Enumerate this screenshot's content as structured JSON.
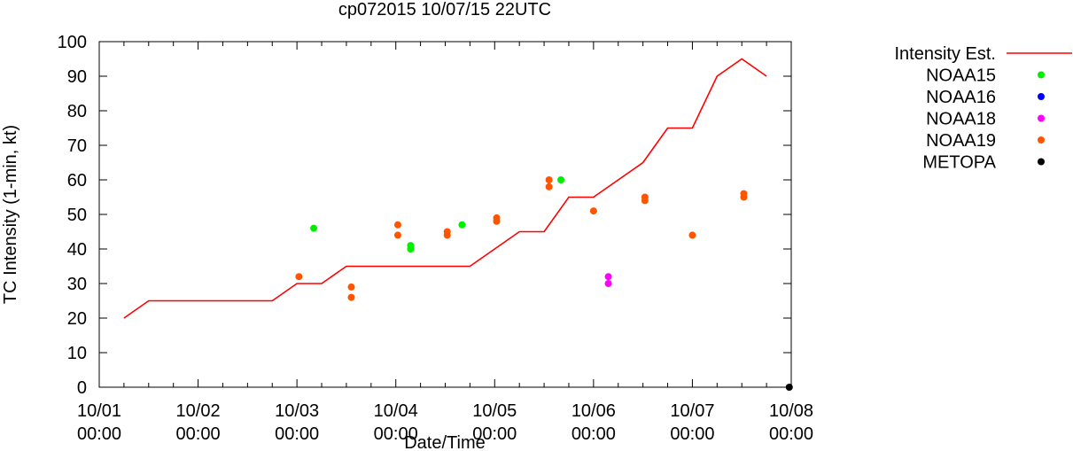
{
  "chart_data": {
    "type": "line",
    "title": "cp072015 10/07/15 22UTC",
    "xlabel": "Date/Time",
    "ylabel": "TC Intensity (1-min, kt)",
    "ylim": [
      0,
      100
    ],
    "yticks": [
      "0",
      "10",
      "20",
      "30",
      "40",
      "50",
      "60",
      "70",
      "80",
      "90",
      "100"
    ],
    "xlim_days": [
      0,
      7
    ],
    "xticks": [
      {
        "day": 0,
        "line1": "10/01",
        "line2": "00:00"
      },
      {
        "day": 1,
        "line1": "10/02",
        "line2": "00:00"
      },
      {
        "day": 2,
        "line1": "10/03",
        "line2": "00:00"
      },
      {
        "day": 3,
        "line1": "10/04",
        "line2": "00:00"
      },
      {
        "day": 4,
        "line1": "10/05",
        "line2": "00:00"
      },
      {
        "day": 5,
        "line1": "10/06",
        "line2": "00:00"
      },
      {
        "day": 6,
        "line1": "10/07",
        "line2": "00:00"
      },
      {
        "day": 7,
        "line1": "10/08",
        "line2": "00:00"
      }
    ],
    "grid": false,
    "legend_position": "outside-right",
    "series": [
      {
        "name": "Intensity Est.",
        "kind": "line",
        "color": "#ff0000",
        "points": [
          [
            0.25,
            20
          ],
          [
            0.5,
            25
          ],
          [
            1.75,
            25
          ],
          [
            2.0,
            30
          ],
          [
            2.25,
            30
          ],
          [
            2.5,
            35
          ],
          [
            3.75,
            35
          ],
          [
            4.0,
            40
          ],
          [
            4.25,
            45
          ],
          [
            4.5,
            45
          ],
          [
            4.75,
            55
          ],
          [
            5.0,
            55
          ],
          [
            5.5,
            65
          ],
          [
            5.75,
            75
          ],
          [
            6.0,
            75
          ],
          [
            6.25,
            90
          ],
          [
            6.5,
            95
          ],
          [
            6.75,
            90
          ]
        ]
      },
      {
        "name": "NOAA15",
        "kind": "scatter",
        "color": "#00ee00",
        "points": [
          [
            2.17,
            46
          ],
          [
            3.15,
            41
          ],
          [
            3.15,
            40
          ],
          [
            3.67,
            47
          ],
          [
            4.67,
            60
          ]
        ]
      },
      {
        "name": "NOAA16",
        "kind": "scatter",
        "color": "#0000ff",
        "points": []
      },
      {
        "name": "NOAA18",
        "kind": "scatter",
        "color": "#ff00ff",
        "points": [
          [
            5.15,
            32
          ],
          [
            5.15,
            30
          ]
        ]
      },
      {
        "name": "NOAA19",
        "kind": "scatter",
        "color": "#ff5500",
        "points": [
          [
            2.02,
            32
          ],
          [
            2.55,
            29
          ],
          [
            2.55,
            26
          ],
          [
            3.02,
            47
          ],
          [
            3.02,
            44
          ],
          [
            3.52,
            45
          ],
          [
            3.52,
            44
          ],
          [
            4.02,
            49
          ],
          [
            4.02,
            48
          ],
          [
            4.55,
            60
          ],
          [
            4.55,
            58
          ],
          [
            5.0,
            51
          ],
          [
            5.52,
            55
          ],
          [
            5.52,
            54
          ],
          [
            6.0,
            44
          ],
          [
            6.52,
            56
          ],
          [
            6.52,
            55
          ]
        ]
      },
      {
        "name": "METOPA",
        "kind": "scatter",
        "color": "#000000",
        "points": [
          [
            6.98,
            0
          ]
        ]
      }
    ]
  }
}
